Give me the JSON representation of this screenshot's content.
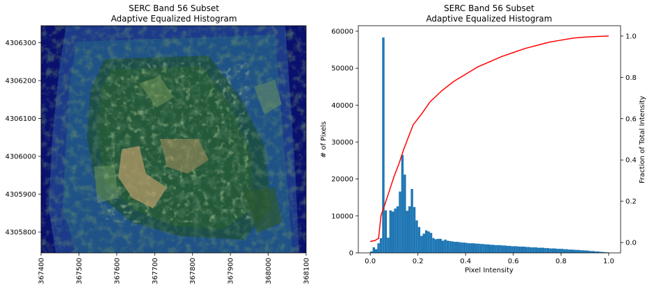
{
  "chart_data": [
    {
      "type": "image",
      "title": "SERC Band 56 Subset",
      "subtitle": "Adaptive Equalized Histogram",
      "colormap": "gist_earth",
      "xlim": [
        367400,
        368100
      ],
      "ylim": [
        4305745,
        4306345
      ],
      "xticks": [
        367400,
        367500,
        367600,
        367700,
        367800,
        367900,
        368000,
        368100
      ],
      "yticks": [
        4306300,
        4306200,
        4306100,
        4306000,
        4305900,
        4305800
      ],
      "xlabel": "",
      "ylabel": ""
    },
    {
      "type": "histogram",
      "title": "SERC Band 56 Subset",
      "subtitle": "Adaptive Equalized Histogram",
      "xlabel": "Pixel Intensity",
      "ylabel": "# of Pixels",
      "y2label": "Fraction of Total Intensity",
      "xlim": [
        -0.05,
        1.05
      ],
      "ylim": [
        0,
        61500
      ],
      "y2lim": [
        -0.05,
        1.05
      ],
      "xticks": [
        0.0,
        0.2,
        0.4,
        0.6,
        0.8,
        1.0
      ],
      "yticks": [
        0,
        10000,
        20000,
        30000,
        40000,
        50000,
        60000
      ],
      "y2ticks": [
        0.0,
        0.2,
        0.4,
        0.6,
        0.8,
        1.0
      ],
      "bar_color": "#1f77b4",
      "line_color": "#ff0000",
      "bin_start": 0.0,
      "bin_width": 0.01,
      "counts": [
        400,
        1500,
        1000,
        2600,
        4000,
        58300,
        11500,
        4100,
        11500,
        11200,
        12000,
        12600,
        16600,
        26500,
        21200,
        11400,
        12600,
        17300,
        12400,
        8800,
        7000,
        4600,
        5200,
        6100,
        5800,
        5400,
        4000,
        3700,
        3800,
        3800,
        3300,
        3600,
        3300,
        3200,
        3100,
        3000,
        3000,
        2900,
        2800,
        2800,
        2700,
        2600,
        2600,
        2600,
        2500,
        2500,
        2400,
        2400,
        2300,
        2300,
        2200,
        2200,
        2100,
        2100,
        2100,
        2000,
        2000,
        1900,
        1900,
        1800,
        1800,
        1800,
        1700,
        1700,
        1700,
        1600,
        1600,
        1500,
        1500,
        1500,
        1400,
        1400,
        1400,
        1300,
        1300,
        1200,
        1200,
        1200,
        1100,
        1100,
        1100,
        1000,
        1000,
        900,
        900,
        850,
        800,
        800,
        700,
        700,
        650,
        600,
        500,
        500,
        400,
        400,
        300,
        250,
        200,
        150
      ],
      "cdf_x": [
        0.0,
        0.02,
        0.035,
        0.045,
        0.06,
        0.08,
        0.1,
        0.12,
        0.14,
        0.16,
        0.17,
        0.18,
        0.2,
        0.22,
        0.25,
        0.3,
        0.35,
        0.4,
        0.45,
        0.5,
        0.55,
        0.6,
        0.65,
        0.7,
        0.75,
        0.8,
        0.85,
        0.9,
        0.95,
        1.0
      ],
      "cdf_y": [
        0.005,
        0.01,
        0.02,
        0.13,
        0.18,
        0.25,
        0.32,
        0.38,
        0.45,
        0.51,
        0.54,
        0.57,
        0.6,
        0.63,
        0.68,
        0.735,
        0.78,
        0.815,
        0.85,
        0.875,
        0.9,
        0.92,
        0.94,
        0.955,
        0.97,
        0.98,
        0.99,
        0.995,
        0.998,
        1.0
      ]
    }
  ]
}
